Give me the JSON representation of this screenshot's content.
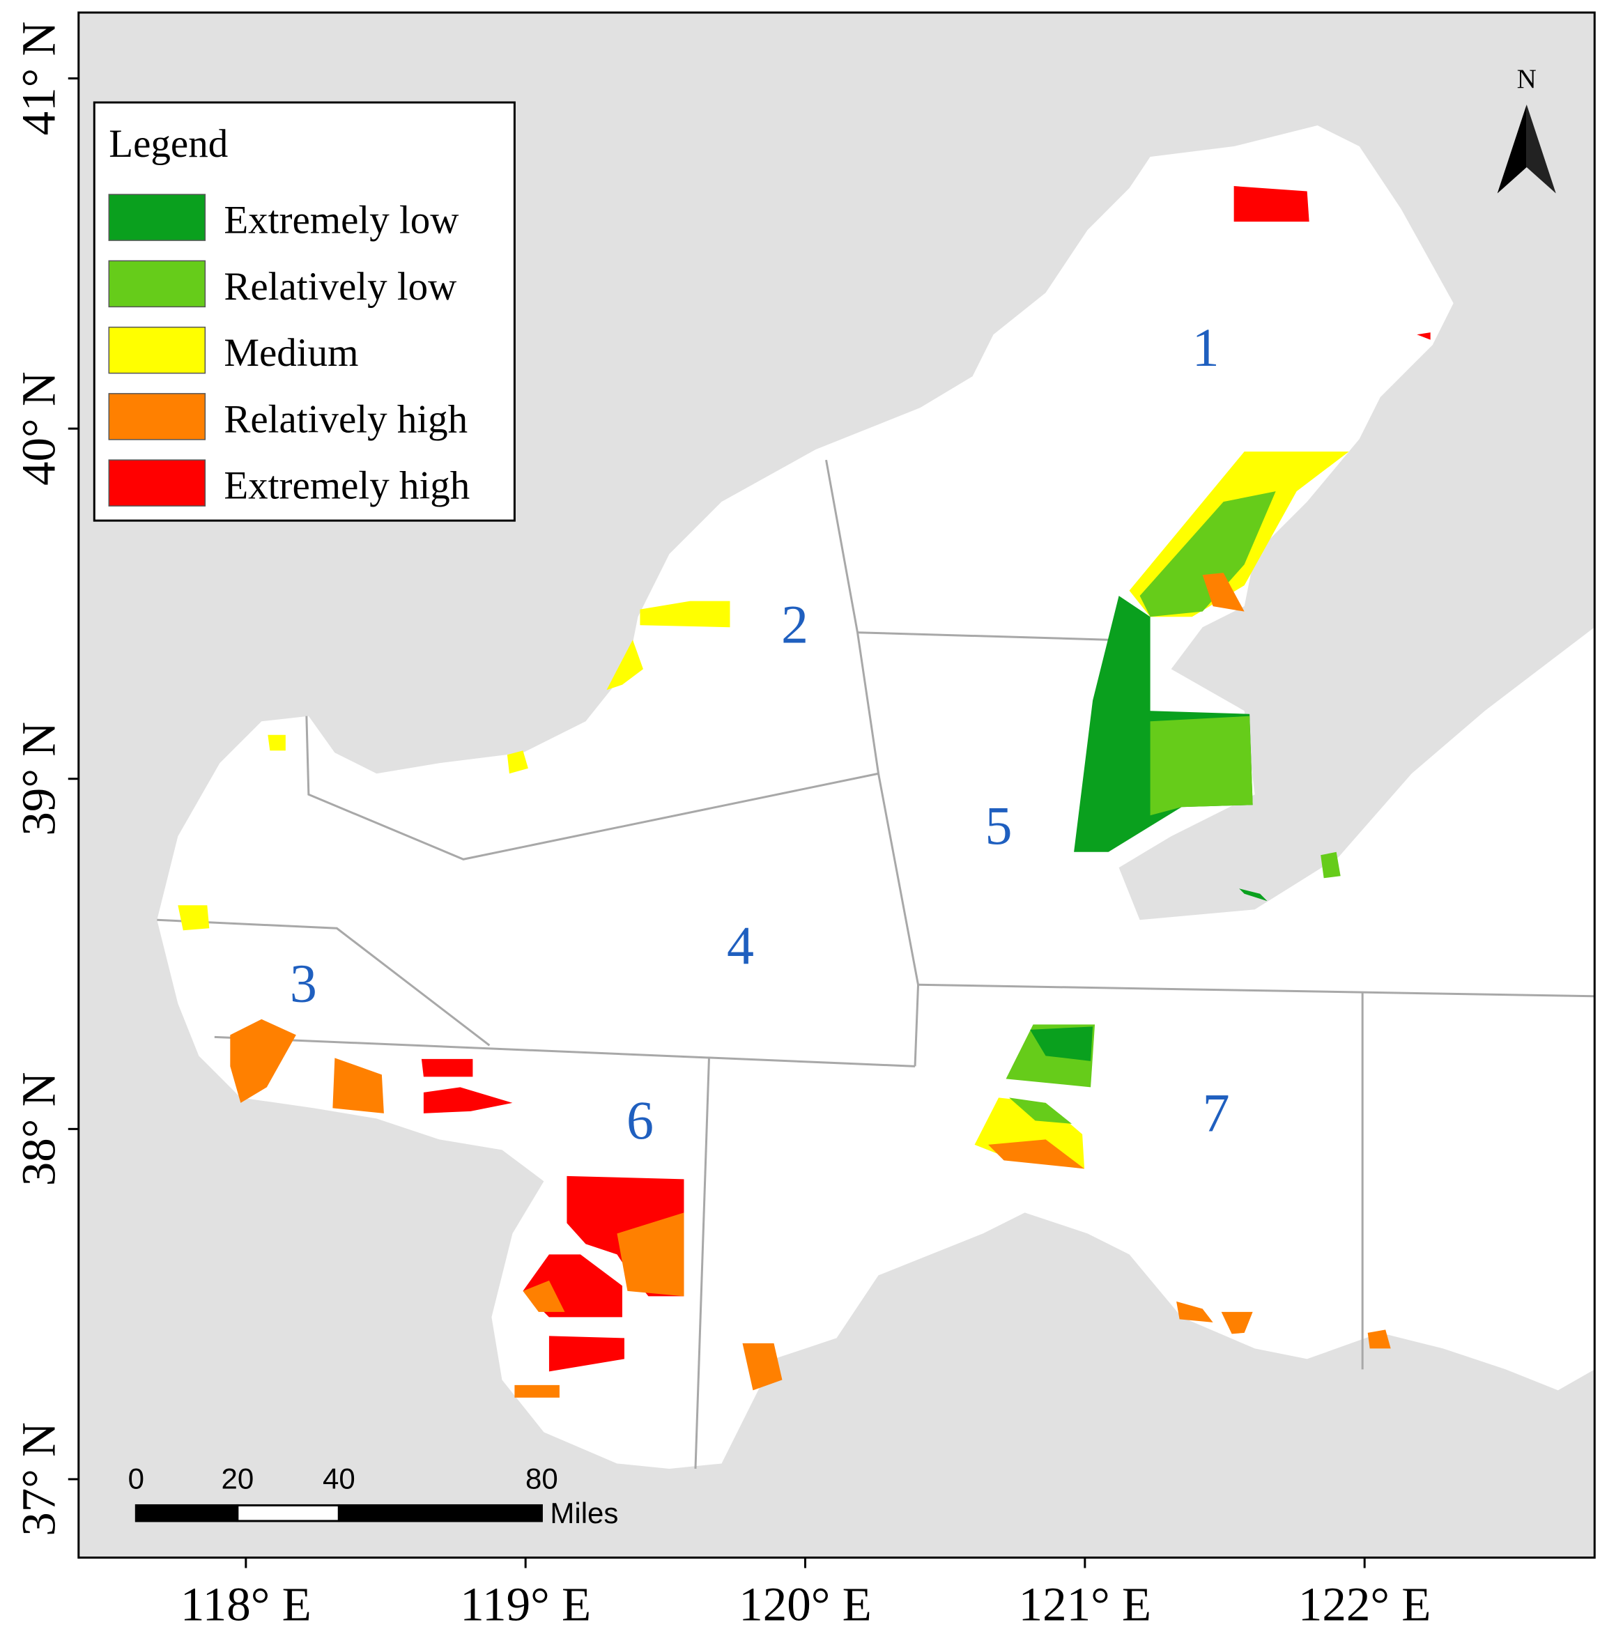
{
  "map": {
    "legend": {
      "title": "Legend",
      "items": [
        {
          "label": "Extremely low",
          "color": "#0aa01e"
        },
        {
          "label": "Relatively low",
          "color": "#66cc1a"
        },
        {
          "label": "Medium",
          "color": "#ffff00"
        },
        {
          "label": "Relatively high",
          "color": "#ff8000"
        },
        {
          "label": "Extremely high",
          "color": "#ff0000"
        }
      ]
    },
    "zones": [
      "1",
      "2",
      "3",
      "4",
      "5",
      "6",
      "7"
    ],
    "lat_labels": [
      "41° N",
      "40° N",
      "39° N",
      "38° N",
      "37° N"
    ],
    "lon_labels": [
      "118° E",
      "119° E",
      "120° E",
      "121° E",
      "122° E"
    ],
    "north": "N",
    "scale_bar": {
      "ticks": [
        0,
        20,
        40,
        80
      ],
      "unit": "Miles"
    }
  }
}
